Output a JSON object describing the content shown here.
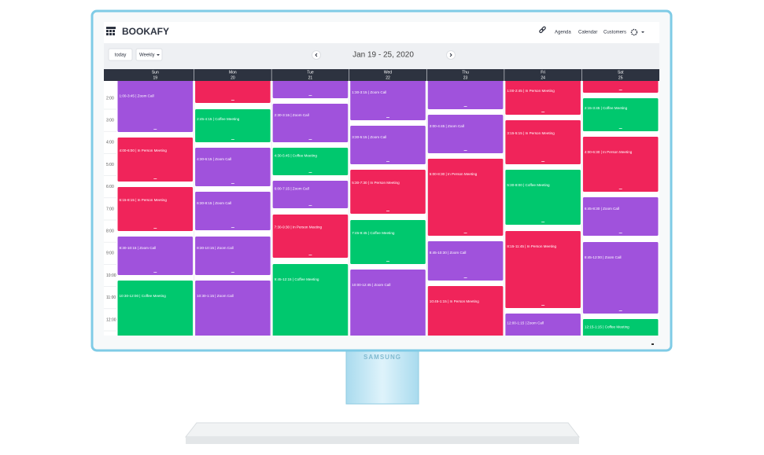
{
  "header": {
    "brand": "BOOKAFY",
    "nav": [
      "Agenda",
      "Calendar",
      "Customers"
    ]
  },
  "toolbar": {
    "today": "today",
    "view": "Weekly",
    "range": "Jan 19 - 25, 2020"
  },
  "days": [
    {
      "name": "Sun",
      "date": "19"
    },
    {
      "name": "Mon",
      "date": "20"
    },
    {
      "name": "Tue",
      "date": "21"
    },
    {
      "name": "Wed",
      "date": "22"
    },
    {
      "name": "Thu",
      "date": "23"
    },
    {
      "name": "Fri",
      "date": "24"
    },
    {
      "name": "Sat",
      "date": "25"
    }
  ],
  "times": [
    "2:00",
    "3:00",
    "4:00",
    "5:00",
    "6:00",
    "7:00",
    "8:00",
    "9:00",
    "10:00",
    "11:00",
    "12:00"
  ],
  "events": [
    [
      {
        "color": "#a052dc",
        "label": "1:00-3:45 | Zoom Call"
      },
      {
        "color": "#f0245a",
        "label": "4:00-6:00 | In Person Meeting"
      },
      {
        "color": "#f0245a",
        "label": "6:15-8:15 | In Person Meeting"
      },
      {
        "color": "#a052dc",
        "label": "8:30-10:15 | Zoom Call"
      },
      {
        "color": "#00c86e",
        "label": "10:30-12:00 | Coffee Meeting"
      }
    ],
    [
      {
        "color": "#f0245a"
      },
      {
        "color": "#00c86e",
        "label": "2:45-4:15 | Coffee Meeting"
      },
      {
        "color": "#a052dc",
        "label": "4:30-6:15 | Zoom Call"
      },
      {
        "color": "#a052dc",
        "label": "6:30-8:15 | Zoom Call"
      },
      {
        "color": "#a052dc",
        "label": "8:30-10:15 | Zoom Call"
      },
      {
        "color": "#a052dc",
        "label": "10:30-1:15 | Zoom Call"
      }
    ],
    [
      {
        "color": "#a052dc"
      },
      {
        "color": "#a052dc",
        "label": "2:30-3:15 | Zoom Call"
      },
      {
        "color": "#00c86e",
        "label": "4:30-5:45 | Coffee Meeting"
      },
      {
        "color": "#a052dc",
        "label": "6:00-7:15 | Zoom Call"
      },
      {
        "color": "#f0245a",
        "label": "7:30-9:30 | In Person Meeting"
      },
      {
        "color": "#00c86e",
        "label": "9:45-12:15 | Coffee Meeting"
      }
    ],
    [
      {
        "color": "#a052dc",
        "label": "1:30-3:15 | Zoom Call"
      },
      {
        "color": "#a052dc",
        "label": "3:30-5:15 | Zoom Call"
      },
      {
        "color": "#f0245a",
        "label": "5:30-7:30 | In Person Meeting"
      },
      {
        "color": "#00c86e",
        "label": "7:45-9:45 | Coffee Meeting"
      },
      {
        "color": "#a052dc",
        "label": "10:00-12:45 | Zoom Call"
      }
    ],
    [
      {
        "color": "#a052dc"
      },
      {
        "color": "#a052dc",
        "label": "3:00-4:45 | Zoom Call"
      },
      {
        "color": "#f0245a",
        "label": "5:00-8:30 | In Person Meeting"
      },
      {
        "color": "#a052dc",
        "label": "8:45-10:30 | Zoom Call"
      },
      {
        "color": "#f0245a",
        "label": "10:45-1:15 | In Person Meeting"
      }
    ],
    [
      {
        "color": "#f0245a",
        "label": "1:00-2:45 | In Person Meeting"
      },
      {
        "color": "#f0245a",
        "label": "3:15-5:15 | In Person Meeting"
      },
      {
        "color": "#00c86e",
        "label": "5:30-8:00 | Coffee Meeting"
      },
      {
        "color": "#f0245a",
        "label": "8:15-11:45 | In Person Meeting"
      },
      {
        "color": "#a052dc",
        "label": "12:00-1:15 | Zoom Call"
      }
    ],
    [
      {
        "color": "#f0245a"
      },
      {
        "color": "#00c86e",
        "label": "2:15-3:45 | Coffee Meeting"
      },
      {
        "color": "#f0245a",
        "label": "4:00-6:30 | In Person Meeting"
      },
      {
        "color": "#a052dc",
        "label": "6:45-8:30 | Zoom Call"
      },
      {
        "color": "#a052dc",
        "label": "8:45-12:00 | Zoom Call"
      },
      {
        "color": "#00c86e",
        "label": "12:15-1:15 | Coffee Meeting"
      }
    ]
  ],
  "monitor": {
    "brand": "SAMSUNG"
  }
}
